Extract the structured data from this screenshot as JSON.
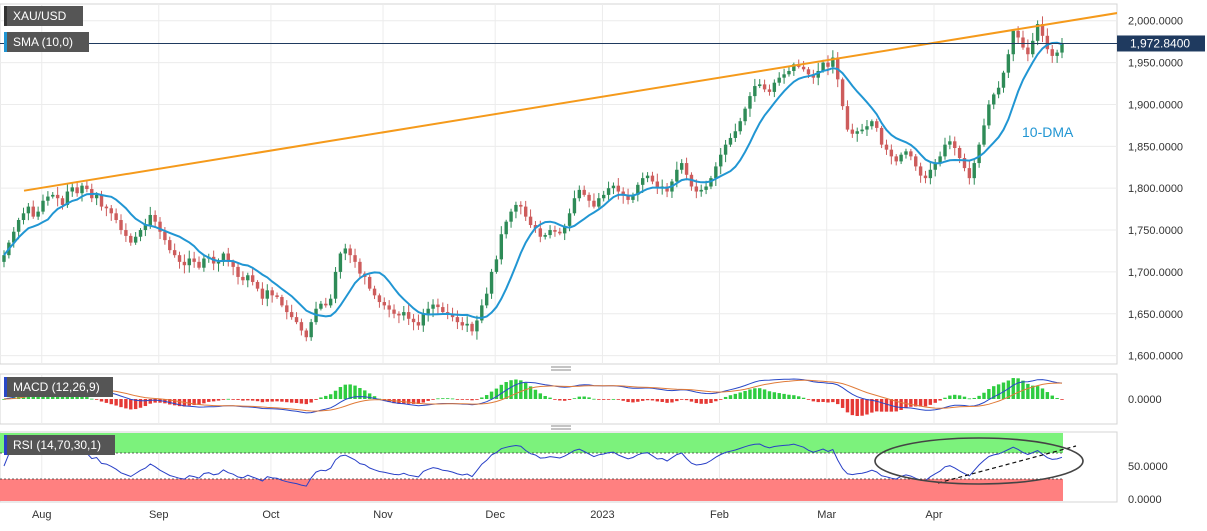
{
  "header": {
    "symbol": "XAU/USD",
    "sma_label": "SMA (10,0)",
    "macd_label": "MACD (12,26,9)",
    "rsi_label": "RSI (14,70,30,1)"
  },
  "annotations": {
    "dma_label": "10-DMA"
  },
  "colors": {
    "bull": "#2e8b57",
    "bear": "#cd5c5c",
    "sma": "#2196d3",
    "trendline": "#f59a1b",
    "macd_line": "#2948c7",
    "signal_line": "#e07b39",
    "hist_pos": "#2ecc40",
    "hist_neg": "#e53935",
    "rsi_line": "#2940c7",
    "overbought_zone": "#7cf27c",
    "oversold_zone": "#ff8080",
    "label_box": "#555555",
    "price_box": "#1f3a5f"
  },
  "price_axis": {
    "ticks": [
      "1,600.0000",
      "1,650.0000",
      "1,700.0000",
      "1,750.0000",
      "1,800.0000",
      "1,850.0000",
      "1,900.0000",
      "1,950.0000",
      "2,000.0000"
    ],
    "current_price_label": "1,972.8400"
  },
  "macd_axis": {
    "ticks": [
      "0.0000"
    ]
  },
  "rsi_axis": {
    "ticks": [
      "0.0000",
      "50.0000"
    ]
  },
  "time_axis": {
    "labels": [
      "Aug",
      "Sep",
      "Oct",
      "Nov",
      "Dec",
      "2023",
      "Feb",
      "Mar",
      "Apr"
    ]
  },
  "chart_data": [
    {
      "type": "candlestick",
      "instrument": "XAU/USD",
      "x_ticks": [
        "Aug",
        "Sep",
        "Oct",
        "Nov",
        "Dec",
        "2023",
        "Feb",
        "Mar",
        "Apr"
      ],
      "ylim": [
        1590,
        2020
      ],
      "y_ticks": [
        1600,
        1650,
        1700,
        1750,
        1800,
        1850,
        1900,
        1950,
        2000
      ],
      "current_price": 1972.84,
      "closes": [
        1720,
        1735,
        1748,
        1762,
        1770,
        1778,
        1766,
        1772,
        1785,
        1790,
        1792,
        1788,
        1780,
        1796,
        1801,
        1794,
        1803,
        1799,
        1788,
        1792,
        1778,
        1776,
        1770,
        1762,
        1750,
        1743,
        1735,
        1742,
        1750,
        1756,
        1768,
        1760,
        1748,
        1738,
        1726,
        1720,
        1712,
        1708,
        1716,
        1712,
        1705,
        1716,
        1718,
        1710,
        1712,
        1722,
        1712,
        1706,
        1694,
        1690,
        1696,
        1688,
        1680,
        1668,
        1678,
        1672,
        1670,
        1660,
        1652,
        1646,
        1640,
        1630,
        1622,
        1640,
        1656,
        1662,
        1660,
        1668,
        1700,
        1722,
        1728,
        1720,
        1712,
        1698,
        1694,
        1680,
        1672,
        1664,
        1660,
        1655,
        1650,
        1648,
        1652,
        1644,
        1640,
        1636,
        1650,
        1656,
        1661,
        1658,
        1652,
        1650,
        1646,
        1640,
        1636,
        1638,
        1629,
        1642,
        1660,
        1674,
        1700,
        1715,
        1745,
        1760,
        1772,
        1780,
        1778,
        1766,
        1756,
        1752,
        1742,
        1744,
        1750,
        1748,
        1746,
        1755,
        1770,
        1788,
        1798,
        1792,
        1785,
        1778,
        1788,
        1792,
        1800,
        1803,
        1796,
        1791,
        1786,
        1792,
        1804,
        1812,
        1815,
        1808,
        1800,
        1802,
        1796,
        1808,
        1822,
        1830,
        1816,
        1802,
        1796,
        1798,
        1802,
        1812,
        1826,
        1840,
        1852,
        1860,
        1868,
        1880,
        1895,
        1910,
        1922,
        1924,
        1918,
        1915,
        1926,
        1932,
        1936,
        1940,
        1948,
        1945,
        1942,
        1936,
        1932,
        1940,
        1950,
        1945,
        1956,
        1930,
        1898,
        1870,
        1865,
        1868,
        1870,
        1874,
        1880,
        1872,
        1852,
        1846,
        1838,
        1832,
        1840,
        1844,
        1838,
        1826,
        1815,
        1812,
        1822,
        1830,
        1838,
        1852,
        1856,
        1848,
        1836,
        1824,
        1812,
        1830,
        1852,
        1875,
        1900,
        1912,
        1920,
        1938,
        1960,
        1988,
        1980,
        1968,
        1960,
        1976,
        1996,
        1982,
        1966,
        1958,
        1962,
        1972.84
      ]
    },
    {
      "type": "line",
      "name": "10-DMA",
      "period": 10
    },
    {
      "type": "line",
      "name": "trendline",
      "points": [
        [
          0,
          1797
        ],
        [
          223,
          2010
        ]
      ]
    },
    {
      "type": "macd",
      "params": [
        12,
        26,
        9
      ],
      "y_ticks": [
        0
      ]
    },
    {
      "type": "rsi",
      "params": [
        14,
        70,
        30,
        1
      ],
      "y_ticks": [
        0,
        50
      ],
      "ylim": [
        0,
        100
      ]
    }
  ]
}
